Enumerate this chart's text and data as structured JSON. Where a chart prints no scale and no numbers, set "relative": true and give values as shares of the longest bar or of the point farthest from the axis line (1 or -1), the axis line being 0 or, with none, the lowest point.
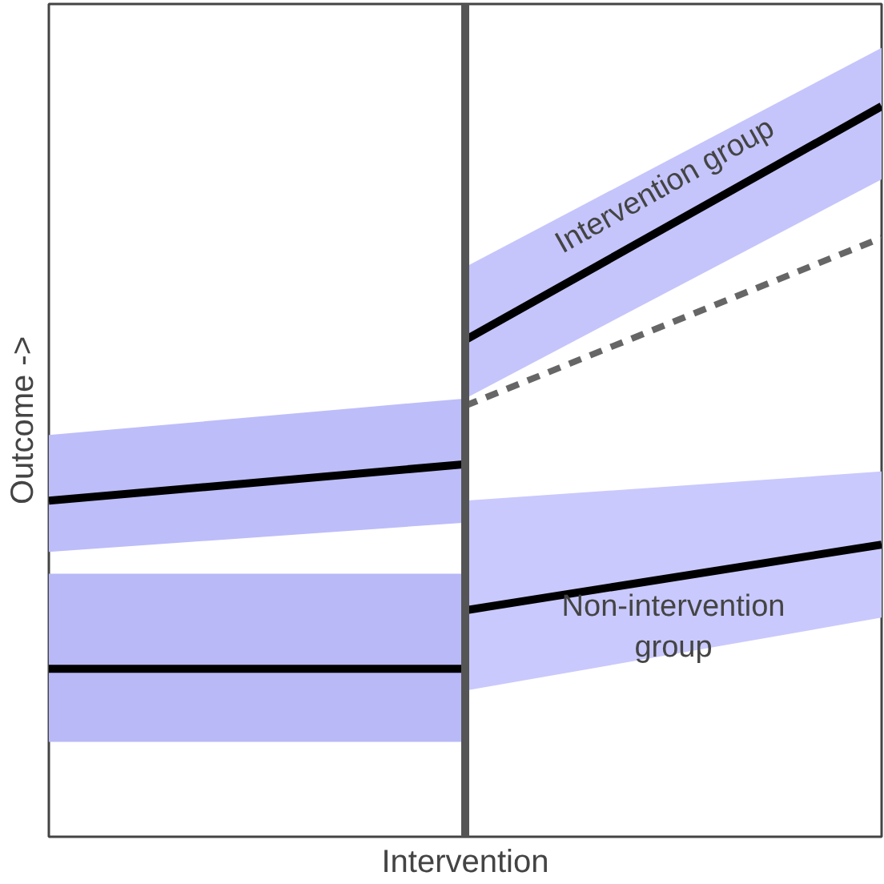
{
  "chart_data": {
    "type": "line",
    "relative": true,
    "xlabel": "Intervention",
    "ylabel": "Outcome ->",
    "categories": [
      null,
      null,
      null
    ],
    "series": [
      {
        "color": "#000000",
        "values": [
          0.46,
          0.51,
          null
        ],
        "lower": [
          0.39,
          0.43,
          null
        ],
        "upper": [
          0.55,
          0.6,
          null
        ]
      },
      {
        "name": "Intervention group",
        "color": "#000000",
        "values": [
          null,
          0.68,
          1.0
        ],
        "lower": [
          null,
          0.6,
          0.9
        ],
        "upper": [
          null,
          0.78,
          1.08
        ]
      },
      {
        "color": "#666666",
        "line_style": "dashed",
        "values": [
          null,
          0.59,
          0.82
        ]
      },
      {
        "color": "#000000",
        "values": [
          0.23,
          0.23,
          null
        ],
        "lower": [
          0.13,
          0.13,
          null
        ],
        "upper": [
          0.36,
          0.36,
          null
        ]
      },
      {
        "name": "Non-intervention group",
        "color": "#000000",
        "values": [
          null,
          0.31,
          0.4
        ],
        "lower": [
          null,
          0.2,
          0.3
        ],
        "upper": [
          null,
          0.46,
          0.5
        ]
      }
    ],
    "tick_labels": false
  }
}
